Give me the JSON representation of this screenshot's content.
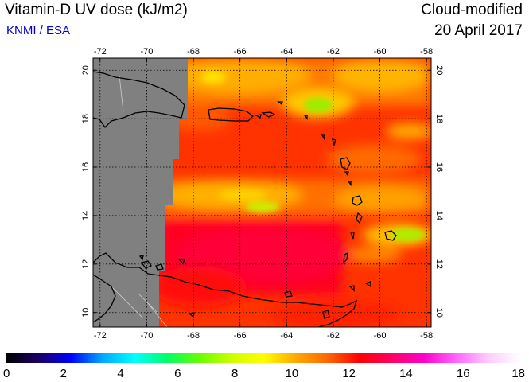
{
  "header": {
    "title": "Vitamin-D UV dose (kJ/m2)",
    "credit": "KNMI / ESA",
    "mode": "Cloud-modified",
    "date": "20 April 2017"
  },
  "map": {
    "lon_range": [
      -72.3,
      -57.8
    ],
    "lat_range": [
      9.4,
      20.5
    ],
    "lon_ticks": [
      "-72",
      "-70",
      "-68",
      "-66",
      "-64",
      "-62",
      "-60",
      "-58"
    ],
    "lat_ticks": [
      "10",
      "12",
      "14",
      "16",
      "18",
      "20"
    ],
    "no_data_color": "#808080",
    "coastline_color": "#000000",
    "border_color": "#cccccc"
  },
  "colorbar": {
    "min": 0,
    "max": 18,
    "labels": [
      "0",
      "2",
      "4",
      "6",
      "8",
      "10",
      "12",
      "14",
      "16",
      "18"
    ],
    "stops": [
      "#000000",
      "#1a0066",
      "#0000ff",
      "#00aaff",
      "#00ffff",
      "#00ff66",
      "#66ff00",
      "#ccff00",
      "#ffff00",
      "#ffaa00",
      "#ff6600",
      "#ff0000",
      "#ff0066",
      "#ff00cc",
      "#ff66ff",
      "#ffccff",
      "#ffffff"
    ]
  }
}
